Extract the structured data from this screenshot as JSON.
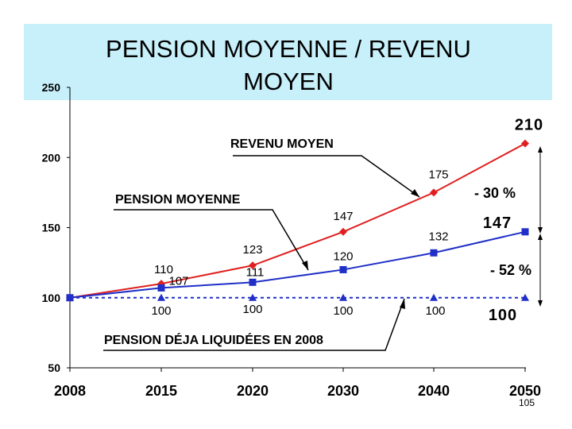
{
  "page_number": "105",
  "chart_data": {
    "type": "line",
    "title_lines": [
      "PENSION MOYENNE / REVENU",
      "MOYEN"
    ],
    "categories": [
      "2008",
      "2015",
      "2020",
      "2030",
      "2040",
      "2050"
    ],
    "ylim": [
      50,
      250
    ],
    "yticks": [
      "50",
      "100",
      "150",
      "200",
      "250"
    ],
    "grid": false,
    "series": [
      {
        "name": "REVENU MOYEN",
        "color": "#e02020",
        "marker": "diamond",
        "values": [
          100,
          110,
          123,
          147,
          175,
          210
        ],
        "labels": [
          "",
          "110",
          "123",
          "147",
          "175",
          "210"
        ]
      },
      {
        "name": "PENSION MOYENNE",
        "color": "#1f2fc8",
        "marker": "square",
        "values": [
          100,
          107,
          111,
          120,
          132,
          147
        ],
        "labels": [
          "",
          "107",
          "111",
          "120",
          "132",
          "147"
        ]
      },
      {
        "name": "PENSION DÉJA LIQUIDÉES EN 2008",
        "color": "#1f2fc8",
        "marker": "triangle",
        "dashed": true,
        "values": [
          100,
          100,
          100,
          100,
          100,
          100
        ],
        "labels": [
          "",
          "100",
          "100",
          "100",
          "100",
          "100"
        ]
      }
    ],
    "annotations": [
      "- 30 %",
      "- 52 %"
    ]
  }
}
